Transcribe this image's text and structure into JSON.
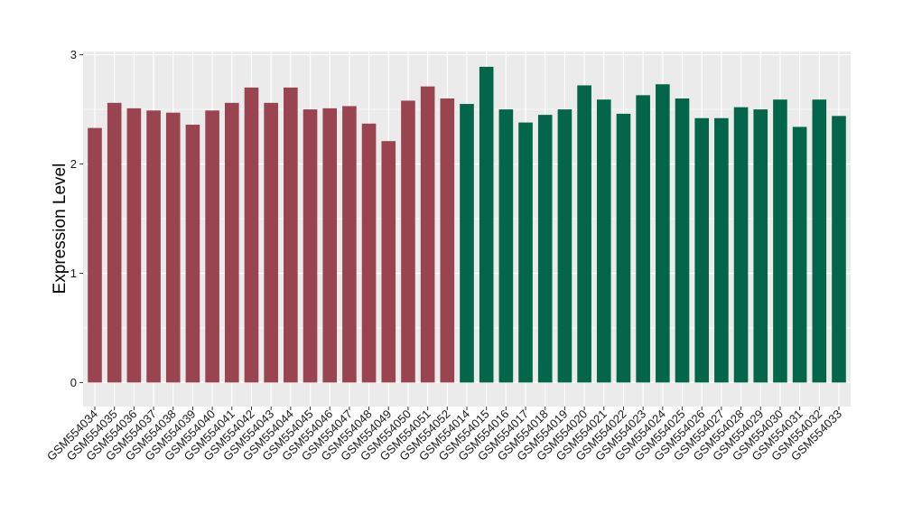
{
  "chart_data": {
    "type": "bar",
    "ylabel": "Expression Level",
    "xlabel": "",
    "ylim": [
      -0.22,
      3.03
    ],
    "yticks": [
      0,
      1,
      2,
      3
    ],
    "grid": true,
    "background": "#EBEBEB",
    "gridline_color": "#FFFFFF",
    "categories": [
      "GSM554034",
      "GSM554035",
      "GSM554036",
      "GSM554037",
      "GSM554038",
      "GSM554039",
      "GSM554040",
      "GSM554041",
      "GSM554042",
      "GSM554043",
      "GSM554044",
      "GSM554045",
      "GSM554046",
      "GSM554047",
      "GSM554048",
      "GSM554049",
      "GSM554050",
      "GSM554051",
      "GSM554052",
      "GSM554014",
      "GSM554015",
      "GSM554016",
      "GSM554017",
      "GSM554018",
      "GSM554019",
      "GSM554020",
      "GSM554021",
      "GSM554022",
      "GSM554023",
      "GSM554024",
      "GSM554025",
      "GSM554026",
      "GSM554027",
      "GSM554028",
      "GSM554029",
      "GSM554030",
      "GSM554031",
      "GSM554032",
      "GSM554033"
    ],
    "values": [
      2.33,
      2.56,
      2.51,
      2.49,
      2.47,
      2.36,
      2.49,
      2.56,
      2.7,
      2.56,
      2.7,
      2.5,
      2.51,
      2.53,
      2.37,
      2.21,
      2.58,
      2.71,
      2.6,
      2.55,
      2.89,
      2.5,
      2.38,
      2.45,
      2.5,
      2.72,
      2.59,
      2.46,
      2.63,
      2.73,
      2.6,
      2.42,
      2.42,
      2.52,
      2.5,
      2.59,
      2.34,
      2.59,
      2.44
    ],
    "groups": [
      {
        "count": 19,
        "color": "#9A4452"
      },
      {
        "count": 20,
        "color": "#03664A"
      }
    ]
  }
}
